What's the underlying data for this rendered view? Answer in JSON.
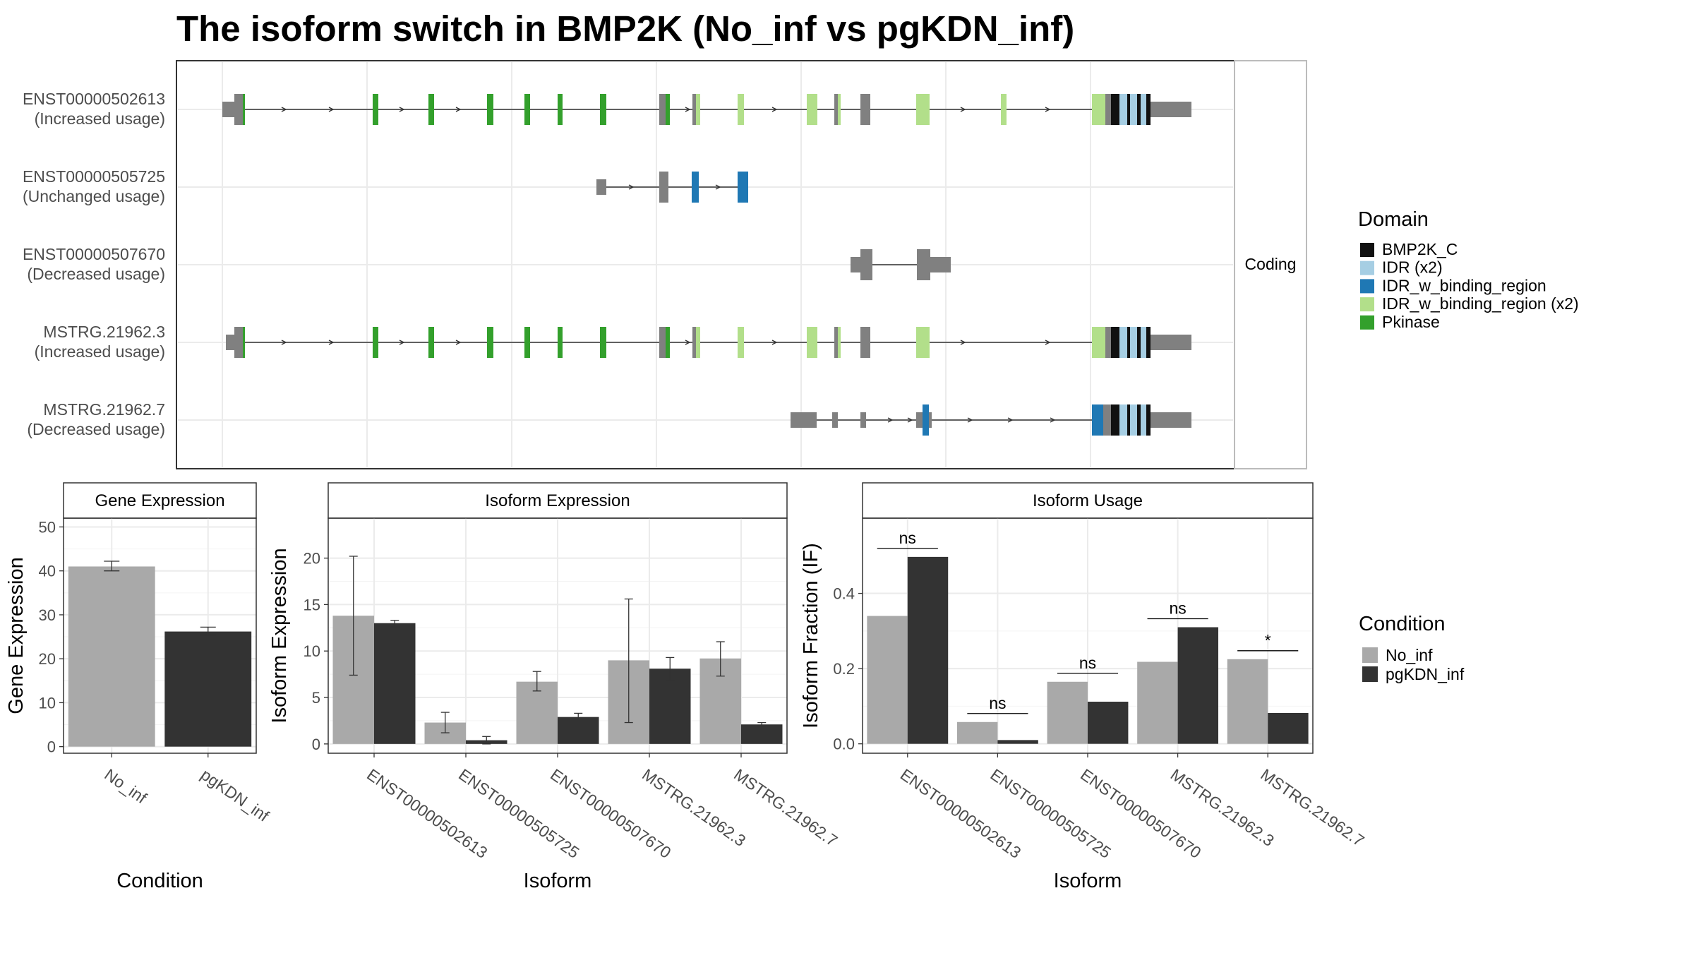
{
  "title": "The isoform switch in BMP2K (No_inf vs pgKDN_inf)",
  "colors": {
    "BMP2K_C": "#111111",
    "IDR": "#a6cee3",
    "IDR_w_binding_region": "#1f78b4",
    "IDR_w_binding_region_x2": "#b2df8a",
    "Pkinase": "#33a02c",
    "noncoding": "#808080",
    "No_inf": "#a9a9a9",
    "pgKDN_inf": "#333333"
  },
  "transcript_plot": {
    "facet_label": "Coding",
    "isoforms": [
      {
        "id": "ENST00000502613",
        "usage": "(Increased usage)"
      },
      {
        "id": "ENST00000505725",
        "usage": "(Unchanged usage)"
      },
      {
        "id": "ENST00000507670",
        "usage": "(Decreased usage)"
      },
      {
        "id": "MSTRG.21962.3",
        "usage": "(Increased usage)"
      },
      {
        "id": "MSTRG.21962.7",
        "usage": "(Decreased usage)"
      }
    ]
  },
  "domain_legend": {
    "title": "Domain",
    "entries": [
      {
        "label": "BMP2K_C",
        "color": "#111111"
      },
      {
        "label": "IDR (x2)",
        "color": "#a6cee3"
      },
      {
        "label": "IDR_w_binding_region",
        "color": "#1f78b4"
      },
      {
        "label": "IDR_w_binding_region (x2)",
        "color": "#b2df8a"
      },
      {
        "label": "Pkinase",
        "color": "#33a02c"
      }
    ]
  },
  "condition_legend": {
    "title": "Condition",
    "entries": [
      {
        "label": "No_inf",
        "color": "#a9a9a9"
      },
      {
        "label": "pgKDN_inf",
        "color": "#333333"
      }
    ]
  },
  "chart_data": [
    {
      "type": "bar",
      "title": "Gene Expression",
      "xlabel": "Condition",
      "ylabel": "Gene Expression",
      "categories": [
        "No_inf",
        "pgKDN_inf"
      ],
      "values": [
        41.0,
        26.2
      ],
      "error_low": [
        40.0,
        25.4
      ],
      "error_high": [
        42.2,
        27.2
      ],
      "yticks": [
        0,
        10,
        20,
        30,
        40,
        50
      ],
      "ylim": [
        -1.5,
        52
      ]
    },
    {
      "type": "bar",
      "title": "Isoform Expression",
      "xlabel": "Isoform",
      "ylabel": "Isoform Expression",
      "categories": [
        "ENST00000502613",
        "ENST00000505725",
        "ENST00000507670",
        "MSTRG.21962.3",
        "MSTRG.21962.7"
      ],
      "series": [
        {
          "name": "No_inf",
          "values": [
            13.8,
            2.3,
            6.7,
            9.0,
            9.2
          ],
          "error_low": [
            7.4,
            1.2,
            5.7,
            2.3,
            7.3
          ],
          "error_high": [
            20.2,
            3.4,
            7.8,
            15.6,
            11.0
          ]
        },
        {
          "name": "pgKDN_inf",
          "values": [
            13.0,
            0.4,
            2.9,
            8.1,
            2.1
          ],
          "error_low": [
            12.6,
            0.0,
            2.5,
            6.8,
            1.9
          ],
          "error_high": [
            13.3,
            0.8,
            3.3,
            9.3,
            2.3
          ]
        }
      ],
      "yticks": [
        0,
        5,
        10,
        15,
        20
      ],
      "ylim": [
        -1.0,
        24.3
      ]
    },
    {
      "type": "bar",
      "title": "Isoform Usage",
      "xlabel": "Isoform",
      "ylabel": "Isoform Fraction (IF)",
      "categories": [
        "ENST00000502613",
        "ENST00000505725",
        "ENST00000507670",
        "MSTRG.21962.3",
        "MSTRG.21962.7"
      ],
      "series": [
        {
          "name": "No_inf",
          "values": [
            0.34,
            0.058,
            0.165,
            0.218,
            0.225
          ]
        },
        {
          "name": "pgKDN_inf",
          "values": [
            0.497,
            0.01,
            0.112,
            0.31,
            0.082
          ]
        }
      ],
      "significance": [
        "ns",
        "ns",
        "ns",
        "ns",
        "*"
      ],
      "yticks": [
        0.0,
        0.2,
        0.4
      ],
      "ylim": [
        -0.025,
        0.6
      ]
    }
  ]
}
